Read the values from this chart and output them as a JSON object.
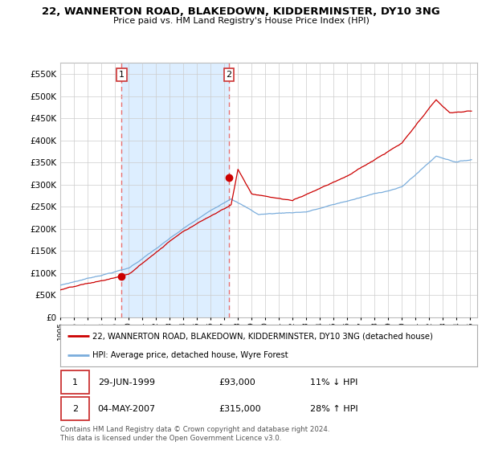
{
  "title": "22, WANNERTON ROAD, BLAKEDOWN, KIDDERMINSTER, DY10 3NG",
  "subtitle": "Price paid vs. HM Land Registry's House Price Index (HPI)",
  "ylim": [
    0,
    575000
  ],
  "yticks": [
    0,
    50000,
    100000,
    150000,
    200000,
    250000,
    300000,
    350000,
    400000,
    450000,
    500000,
    550000
  ],
  "red_line_color": "#cc0000",
  "blue_line_color": "#7aaddc",
  "shade_color": "#ddeeff",
  "dashed_line_color": "#e87070",
  "bg_color": "#ffffff",
  "grid_color": "#cccccc",
  "sale1": {
    "date_num": 1999.49,
    "price": 93000,
    "label": "1",
    "hpi_note": "11% ↓ HPI",
    "date_str": "29-JUN-1999"
  },
  "sale2": {
    "date_num": 2007.34,
    "price": 315000,
    "label": "2",
    "hpi_note": "28% ↑ HPI",
    "date_str": "04-MAY-2007"
  },
  "legend_red": "22, WANNERTON ROAD, BLAKEDOWN, KIDDERMINSTER, DY10 3NG (detached house)",
  "legend_blue": "HPI: Average price, detached house, Wyre Forest",
  "footnote": "Contains HM Land Registry data © Crown copyright and database right 2024.\nThis data is licensed under the Open Government Licence v3.0.",
  "xmin": 1995.0,
  "xmax": 2025.5
}
